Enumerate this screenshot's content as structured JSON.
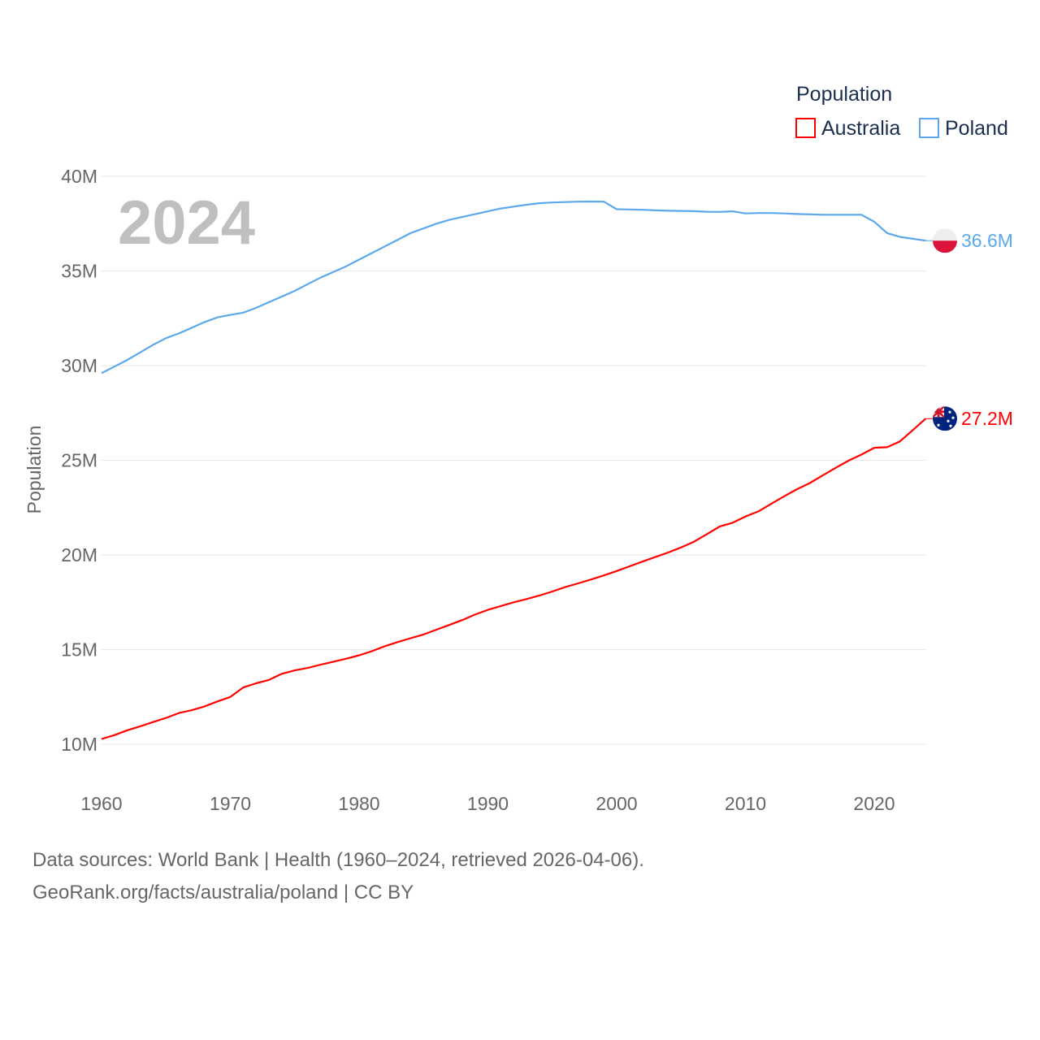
{
  "chart_data": {
    "type": "line",
    "ylabel": "Population",
    "xlabel": "",
    "year_watermark": "2024",
    "legend_title": "Population",
    "legend_position": "top-right",
    "xlim": [
      1960,
      2024
    ],
    "ylim": [
      10000000,
      40000000
    ],
    "x_ticks": [
      "1960",
      "1970",
      "1980",
      "1990",
      "2000",
      "2010",
      "2020"
    ],
    "y_ticks": [
      {
        "value": 10,
        "label": "10M"
      },
      {
        "value": 15,
        "label": "15M"
      },
      {
        "value": 20,
        "label": "20M"
      },
      {
        "value": 25,
        "label": "25M"
      },
      {
        "value": 30,
        "label": "30M"
      },
      {
        "value": 35,
        "label": "35M"
      },
      {
        "value": 40,
        "label": "40M"
      }
    ],
    "y_unit": "millions",
    "grid": true,
    "x_start": 1960,
    "series": [
      {
        "name": "Australia",
        "color": "#ff0000",
        "end_label": "27.2M",
        "flag": "australia-flag",
        "values": [
          10.28,
          10.48,
          10.74,
          10.95,
          11.17,
          11.39,
          11.65,
          11.8,
          12.0,
          12.26,
          12.5,
          13.0,
          13.22,
          13.4,
          13.72,
          13.9,
          14.03,
          14.2,
          14.36,
          14.52,
          14.7,
          14.92,
          15.18,
          15.4,
          15.6,
          15.8,
          16.05,
          16.3,
          16.56,
          16.85,
          17.1,
          17.3,
          17.5,
          17.67,
          17.86,
          18.07,
          18.3,
          18.5,
          18.7,
          18.92,
          19.15,
          19.4,
          19.65,
          19.89,
          20.13,
          20.4,
          20.7,
          21.1,
          21.5,
          21.7,
          22.03,
          22.3,
          22.7,
          23.1,
          23.47,
          23.8,
          24.2,
          24.6,
          24.98,
          25.3,
          25.66,
          25.69,
          26.0,
          26.6,
          27.2
        ]
      },
      {
        "name": "Poland",
        "color": "#5ba8ec",
        "end_label": "36.6M",
        "flag": "poland-flag",
        "values": [
          29.6,
          29.95,
          30.3,
          30.7,
          31.1,
          31.45,
          31.7,
          32.0,
          32.3,
          32.55,
          32.68,
          32.8,
          33.05,
          33.35,
          33.65,
          33.95,
          34.3,
          34.65,
          34.95,
          35.25,
          35.6,
          35.95,
          36.3,
          36.65,
          37.0,
          37.25,
          37.5,
          37.7,
          37.85,
          38.0,
          38.15,
          38.3,
          38.4,
          38.5,
          38.58,
          38.62,
          38.64,
          38.66,
          38.67,
          38.66,
          38.26,
          38.25,
          38.23,
          38.2,
          38.18,
          38.17,
          38.16,
          38.13,
          38.12,
          38.15,
          38.04,
          38.06,
          38.06,
          38.04,
          38.01,
          37.99,
          37.97,
          37.97,
          37.97,
          37.97,
          37.6,
          37.0,
          36.8,
          36.7,
          36.6
        ]
      }
    ]
  },
  "footer": {
    "line1": "Data sources: World Bank | Health (1960–2024, retrieved 2026-04-06).",
    "line2": "GeoRank.org/facts/australia/poland | CC BY"
  }
}
